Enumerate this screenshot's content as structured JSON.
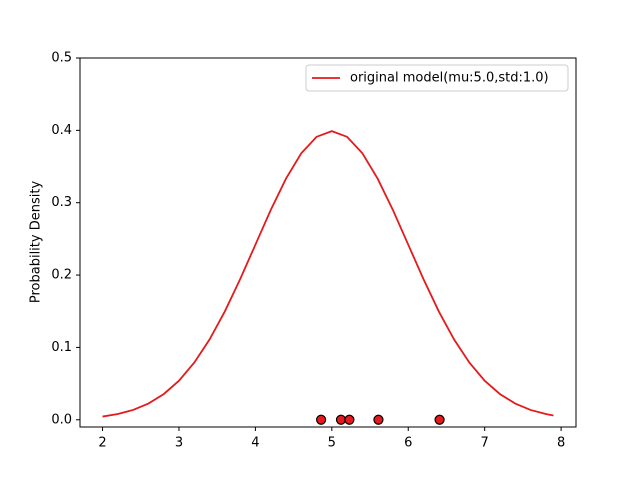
{
  "chart_data": {
    "type": "line",
    "ylabel": "Probability Density",
    "xlim": [
      1.705,
      8.195
    ],
    "ylim": [
      -0.01,
      0.5
    ],
    "xticks": [
      2,
      3,
      4,
      5,
      6,
      7,
      8
    ],
    "yticks": [
      {
        "value": 0,
        "label": "0.0"
      },
      {
        "value": 0.1,
        "label": "0.1"
      },
      {
        "value": 0.2,
        "label": "0.2"
      },
      {
        "value": 0.3,
        "label": "0.3"
      },
      {
        "value": 0.4,
        "label": "0.4"
      },
      {
        "value": 0.5,
        "label": "0.5"
      }
    ],
    "legend": "upper right",
    "series": [
      {
        "name": "original model(mu:5.0,std:1.0)",
        "type": "line",
        "color": "#e41a1c",
        "x": [
          2.0,
          2.2,
          2.4,
          2.6,
          2.8,
          3.0,
          3.2,
          3.4,
          3.6,
          3.8,
          4.0,
          4.2,
          4.4,
          4.6,
          4.8,
          5.0,
          5.2,
          5.4,
          5.6,
          5.8,
          6.0,
          6.2,
          6.4,
          6.6,
          6.8,
          7.0,
          7.2,
          7.4,
          7.6,
          7.8,
          7.9
        ],
        "values": [
          0.00443,
          0.00792,
          0.01358,
          0.02239,
          0.03547,
          0.05399,
          0.07895,
          0.11092,
          0.14973,
          0.19419,
          0.24197,
          0.28969,
          0.33322,
          0.36827,
          0.39104,
          0.39894,
          0.39104,
          0.36827,
          0.33322,
          0.28969,
          0.24197,
          0.19419,
          0.14973,
          0.11092,
          0.07895,
          0.05399,
          0.03547,
          0.02239,
          0.01358,
          0.00792,
          0.00595
        ]
      },
      {
        "type": "scatter",
        "color": "#e41a1c",
        "x": [
          4.86,
          5.12,
          5.23,
          5.61,
          6.41
        ],
        "values": [
          0,
          0,
          0,
          0,
          0
        ]
      }
    ]
  }
}
